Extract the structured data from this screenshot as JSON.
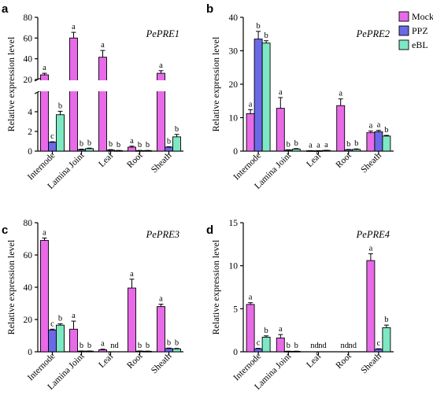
{
  "colors": {
    "Mock": "#e86ae8",
    "PPZ": "#6a6ae6",
    "eBL": "#7de8c3"
  },
  "legend": {
    "items": [
      "Mock",
      "PPZ",
      "eBL"
    ]
  },
  "chart_data": [
    {
      "panel": "a",
      "type": "bar",
      "title": "PePRE1",
      "ylabel": "Relative expression level",
      "categories": [
        "Internode",
        "Lamina Joint",
        "Leaf",
        "Root",
        "Sheath"
      ],
      "axis_break": {
        "lower": [
          0,
          6
        ],
        "upper": [
          20,
          80
        ]
      },
      "yticks_lower": [
        0,
        2,
        4
      ],
      "yticks_upper": [
        20,
        40,
        60,
        80
      ],
      "series": [
        {
          "name": "Mock",
          "values": [
            24.5,
            60,
            41.5,
            0.4,
            26
          ],
          "errors": [
            1.5,
            5.5,
            6.5,
            0.1,
            2.5
          ],
          "letters": [
            "a",
            "a",
            "a",
            "a",
            "a"
          ]
        },
        {
          "name": "PPZ",
          "values": [
            0.9,
            0.15,
            0.1,
            0.05,
            0.4
          ],
          "errors": [
            0.05,
            0.05,
            0.05,
            0.02,
            0.05
          ],
          "letters": [
            "c",
            "b",
            "b",
            "b",
            "b"
          ]
        },
        {
          "name": "eBL",
          "values": [
            3.7,
            0.25,
            0.05,
            0.05,
            1.45
          ],
          "errors": [
            0.35,
            0.05,
            0.02,
            0.02,
            0.25
          ],
          "letters": [
            "b",
            "b",
            "b",
            "b",
            "b"
          ]
        }
      ]
    },
    {
      "panel": "b",
      "type": "bar",
      "title": "PePRE2",
      "ylabel": "Relative expression level",
      "categories": [
        "Internode",
        "Lamina Joint",
        "Leaf",
        "Root",
        "Sheath"
      ],
      "ylim": [
        0,
        40
      ],
      "yticks": [
        0,
        10,
        20,
        30,
        40
      ],
      "series": [
        {
          "name": "Mock",
          "values": [
            11.2,
            12.8,
            0.1,
            13.6,
            5.5
          ],
          "errors": [
            1.2,
            3.2,
            0.05,
            2.0,
            0.5
          ],
          "letters": [
            "a",
            "a",
            "a",
            "a",
            "a"
          ]
        },
        {
          "name": "PPZ",
          "values": [
            33.5,
            0.3,
            0.1,
            0.4,
            5.8
          ],
          "errors": [
            2.3,
            0.1,
            0.05,
            0.1,
            0.4
          ],
          "letters": [
            "b",
            "b",
            "a",
            "b",
            "a"
          ]
        },
        {
          "name": "eBL",
          "values": [
            32.3,
            0.6,
            0.2,
            0.5,
            4.5
          ],
          "errors": [
            0.7,
            0.15,
            0.05,
            0.15,
            0.2
          ],
          "letters": [
            "b",
            "b",
            "a",
            "b",
            "b"
          ]
        }
      ]
    },
    {
      "panel": "c",
      "type": "bar",
      "title": "PePRE3",
      "ylabel": "Relative expression level",
      "categories": [
        "Internode",
        "Lamina Joint",
        "Leaf",
        "Root",
        "Sheath"
      ],
      "ylim": [
        0,
        80
      ],
      "yticks": [
        0,
        20,
        40,
        60,
        80
      ],
      "series": [
        {
          "name": "Mock",
          "values": [
            69,
            14,
            1.2,
            39.5,
            28
          ],
          "errors": [
            1.5,
            5.0,
            0.4,
            5.5,
            1.5
          ],
          "letters": [
            "a",
            "a",
            "a",
            "a",
            "a"
          ]
        },
        {
          "name": "PPZ",
          "values": [
            13.5,
            0.4,
            null,
            0.4,
            2.0
          ],
          "errors": [
            0.5,
            0.1,
            null,
            0.1,
            0.3
          ],
          "letters": [
            "c",
            "b",
            "nd",
            "b",
            "b"
          ]
        },
        {
          "name": "eBL",
          "values": [
            16.5,
            0.4,
            null,
            0.3,
            1.8
          ],
          "errors": [
            0.8,
            0.1,
            null,
            0.1,
            0.3
          ],
          "letters": [
            "b",
            "b",
            "",
            "b",
            "b"
          ]
        }
      ]
    },
    {
      "panel": "d",
      "type": "bar",
      "title": "PePRE4",
      "ylabel": "Relative expression level",
      "categories": [
        "Internode",
        "Lamina Joint",
        "Leaf",
        "Root",
        "Sheath"
      ],
      "ylim": [
        0,
        15
      ],
      "yticks": [
        0,
        5,
        10,
        15
      ],
      "series": [
        {
          "name": "Mock",
          "values": [
            5.5,
            1.6,
            null,
            null,
            10.6
          ],
          "errors": [
            0.2,
            0.4,
            null,
            null,
            0.8
          ],
          "letters": [
            "a",
            "a",
            "nd",
            "nd",
            "a"
          ]
        },
        {
          "name": "PPZ",
          "values": [
            0.35,
            0.05,
            null,
            null,
            0.3
          ],
          "errors": [
            0.05,
            0.02,
            null,
            null,
            0.05
          ],
          "letters": [
            "c",
            "b",
            "nd",
            "nd",
            "c"
          ]
        },
        {
          "name": "eBL",
          "values": [
            1.7,
            0.05,
            null,
            null,
            2.8
          ],
          "errors": [
            0.15,
            0.02,
            null,
            null,
            0.3
          ],
          "letters": [
            "b",
            "b",
            "",
            "",
            "b"
          ]
        }
      ]
    }
  ]
}
